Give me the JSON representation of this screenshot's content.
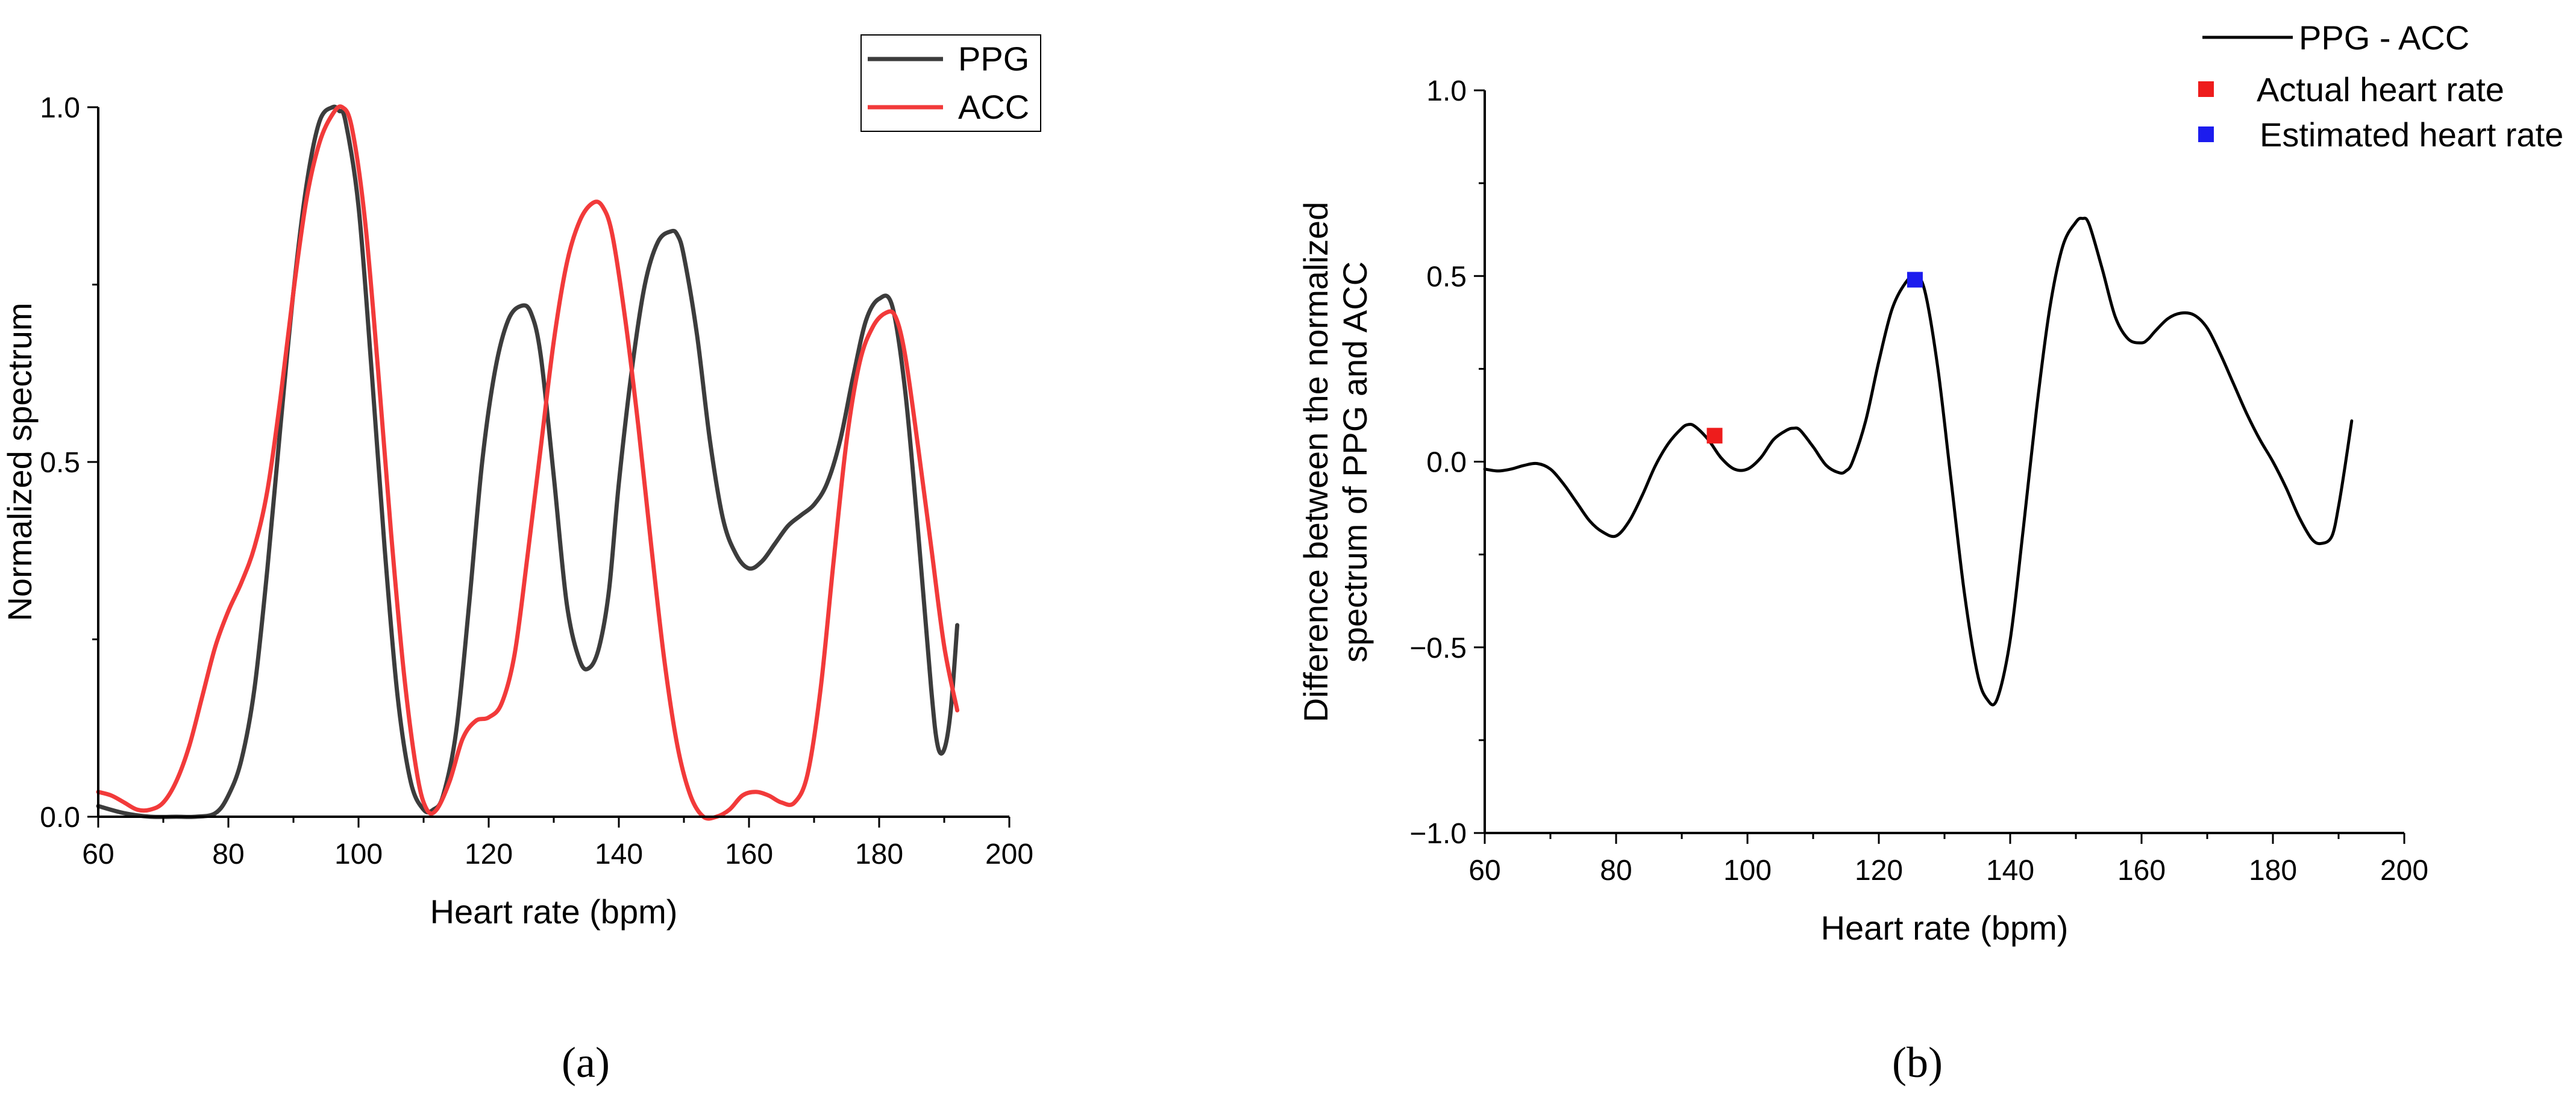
{
  "figure": {
    "panel_a_label": "(a)",
    "panel_b_label": "(b)"
  },
  "chart_data": [
    {
      "id": "a",
      "type": "line",
      "title": "",
      "xlabel": "Heart rate (bpm)",
      "ylabel": "Normalized spectrum",
      "xlim": [
        60,
        200
      ],
      "ylim": [
        0,
        1.0
      ],
      "xticks": [
        60,
        80,
        100,
        120,
        140,
        160,
        180,
        200
      ],
      "xtick_labels": [
        "60",
        "80",
        "100",
        "120",
        "140",
        "160",
        "180",
        "200"
      ],
      "yticks": [
        0,
        0.5,
        1.0
      ],
      "ytick_labels": [
        "0.0",
        "0.5",
        "1.0"
      ],
      "legend_position": "top-right",
      "grid": false,
      "series": [
        {
          "name": "PPG",
          "color": "#3c3c3c",
          "x": [
            60,
            64,
            68,
            72,
            75,
            78,
            80,
            82,
            84,
            86,
            88,
            90,
            92,
            94,
            96,
            97,
            98,
            100,
            102,
            104,
            106,
            108,
            110,
            111.5,
            113,
            115,
            117,
            119,
            121,
            123,
            125,
            126.5,
            128,
            130,
            132,
            134,
            135.5,
            137,
            138.5,
            140,
            142,
            144,
            146,
            148,
            149,
            150,
            152,
            154,
            156,
            158,
            160,
            162,
            164,
            166,
            168,
            170,
            172,
            174,
            176,
            178,
            180,
            182,
            184,
            186,
            188,
            189,
            190,
            191,
            192
          ],
          "y": [
            0.015,
            0.005,
            0.0,
            0.0,
            0.0,
            0.005,
            0.03,
            0.08,
            0.18,
            0.35,
            0.55,
            0.74,
            0.89,
            0.98,
            1.0,
            0.995,
            0.98,
            0.86,
            0.63,
            0.38,
            0.17,
            0.05,
            0.01,
            0.01,
            0.03,
            0.12,
            0.3,
            0.5,
            0.63,
            0.7,
            0.72,
            0.71,
            0.65,
            0.48,
            0.3,
            0.22,
            0.21,
            0.24,
            0.32,
            0.47,
            0.63,
            0.75,
            0.81,
            0.825,
            0.82,
            0.79,
            0.68,
            0.53,
            0.42,
            0.37,
            0.35,
            0.36,
            0.385,
            0.41,
            0.425,
            0.44,
            0.47,
            0.53,
            0.62,
            0.7,
            0.73,
            0.72,
            0.6,
            0.4,
            0.18,
            0.1,
            0.095,
            0.15,
            0.27
          ]
        },
        {
          "name": "ACC",
          "color": "#f23a3a",
          "x": [
            60,
            62,
            64,
            66,
            68,
            70,
            72,
            74,
            76,
            78,
            80,
            82,
            84,
            86,
            88,
            90,
            92,
            94,
            96,
            97.5,
            99,
            101,
            103,
            105,
            107,
            109,
            110.5,
            112,
            114,
            116,
            118,
            120,
            122,
            124,
            126,
            128,
            130,
            132,
            134,
            136,
            137.5,
            139,
            141,
            143,
            145,
            147,
            149,
            151,
            153,
            155,
            157,
            159,
            161,
            163,
            165,
            167,
            169,
            171,
            173,
            175,
            177,
            179,
            181,
            182.5,
            184,
            186,
            188,
            190,
            192
          ],
          "y": [
            0.035,
            0.03,
            0.02,
            0.01,
            0.01,
            0.02,
            0.05,
            0.1,
            0.17,
            0.24,
            0.29,
            0.33,
            0.38,
            0.46,
            0.59,
            0.74,
            0.87,
            0.95,
            0.99,
            1.0,
            0.97,
            0.84,
            0.63,
            0.4,
            0.2,
            0.06,
            0.01,
            0.01,
            0.05,
            0.11,
            0.135,
            0.14,
            0.16,
            0.23,
            0.37,
            0.52,
            0.67,
            0.78,
            0.84,
            0.865,
            0.86,
            0.82,
            0.7,
            0.55,
            0.38,
            0.22,
            0.1,
            0.03,
            0.0,
            0.0,
            0.01,
            0.03,
            0.035,
            0.03,
            0.02,
            0.02,
            0.06,
            0.18,
            0.36,
            0.53,
            0.64,
            0.69,
            0.71,
            0.705,
            0.65,
            0.52,
            0.38,
            0.24,
            0.15
          ]
        }
      ]
    },
    {
      "id": "b",
      "type": "line",
      "title": "",
      "xlabel": "Heart rate (bpm)",
      "ylabel_line1": "Difference between the normalized",
      "ylabel_line2": "spectrum of PPG and ACC",
      "xlim": [
        60,
        200
      ],
      "ylim": [
        -1.0,
        1.0
      ],
      "xticks": [
        60,
        80,
        100,
        120,
        140,
        160,
        180,
        200
      ],
      "xtick_labels": [
        "60",
        "80",
        "100",
        "120",
        "140",
        "160",
        "180",
        "200"
      ],
      "yticks": [
        -1.0,
        -0.5,
        0.0,
        0.5,
        1.0
      ],
      "ytick_labels": [
        "−1.0",
        "−0.5",
        "0.0",
        "0.5",
        "1.0"
      ],
      "legend_position": "top-right",
      "grid": false,
      "series": [
        {
          "name": "PPG - ACC",
          "color": "#000000",
          "x": [
            60,
            62,
            64,
            66,
            68,
            70,
            72,
            74,
            76,
            78,
            80,
            82,
            84,
            86,
            88,
            90,
            91,
            92,
            94,
            96,
            98,
            100,
            102,
            104,
            106,
            107,
            108,
            110,
            112,
            114,
            115,
            116,
            118,
            120,
            122,
            124,
            125.5,
            127,
            129,
            131,
            133,
            135,
            136.5,
            138,
            140,
            142,
            144,
            146,
            148,
            150,
            151,
            152,
            154,
            156,
            158,
            160,
            161,
            162,
            164,
            166,
            168,
            170,
            172,
            174,
            176,
            178,
            180,
            182,
            184,
            186,
            187.5,
            189,
            190,
            191,
            192
          ],
          "y": [
            -0.02,
            -0.025,
            -0.02,
            -0.01,
            -0.005,
            -0.02,
            -0.06,
            -0.11,
            -0.16,
            -0.19,
            -0.2,
            -0.16,
            -0.09,
            -0.01,
            0.05,
            0.09,
            0.1,
            0.095,
            0.06,
            0.01,
            -0.02,
            -0.02,
            0.01,
            0.06,
            0.085,
            0.09,
            0.085,
            0.04,
            -0.01,
            -0.03,
            -0.025,
            0.0,
            0.11,
            0.27,
            0.41,
            0.48,
            0.5,
            0.46,
            0.25,
            -0.05,
            -0.35,
            -0.57,
            -0.64,
            -0.64,
            -0.48,
            -0.18,
            0.14,
            0.41,
            0.58,
            0.645,
            0.655,
            0.64,
            0.52,
            0.39,
            0.33,
            0.32,
            0.33,
            0.35,
            0.385,
            0.4,
            0.395,
            0.36,
            0.29,
            0.21,
            0.13,
            0.06,
            0.0,
            -0.07,
            -0.15,
            -0.21,
            -0.22,
            -0.2,
            -0.12,
            -0.01,
            0.11
          ]
        }
      ],
      "markers": [
        {
          "name": "Actual heart rate",
          "color": "#ee1c1c",
          "x": 95,
          "y": 0.07
        },
        {
          "name": "Estimated heart rate",
          "color": "#1c1cee",
          "x": 125.5,
          "y": 0.49
        }
      ]
    }
  ]
}
